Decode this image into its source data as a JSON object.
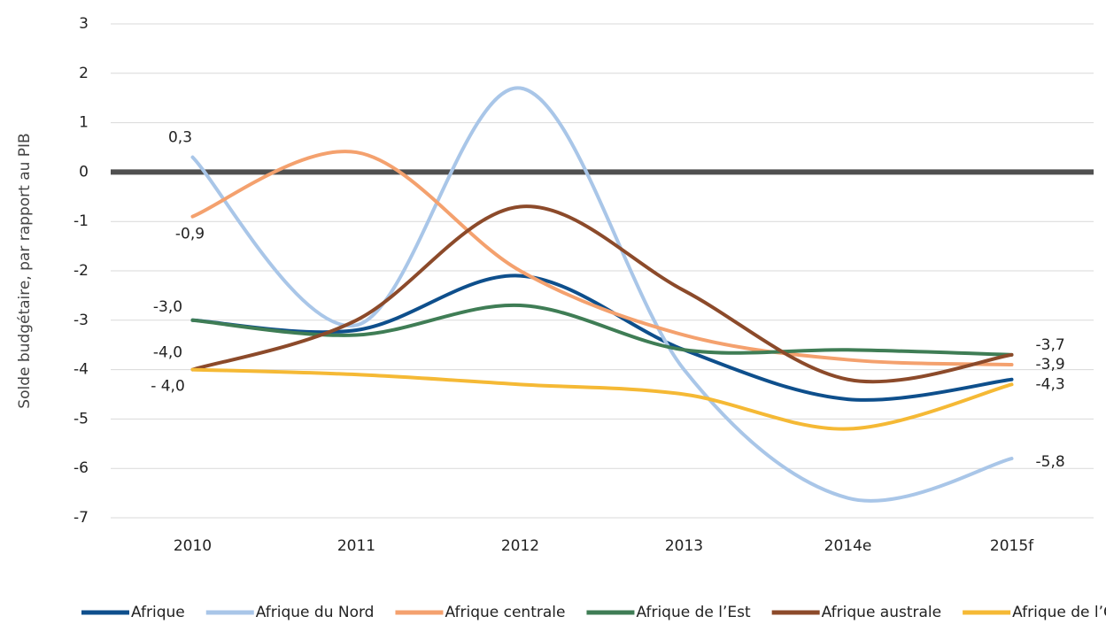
{
  "chart_data": {
    "type": "line",
    "y_label": "Solde budgétaire, par rapport au PIB",
    "categories": [
      "2010",
      "2011",
      "2012",
      "2013",
      "2014e",
      "2015f"
    ],
    "series": [
      {
        "name": "Afrique",
        "color": "#0e4f8c",
        "values": [
          -3.0,
          -3.2,
          -2.1,
          -3.6,
          -4.6,
          -4.2
        ],
        "value_labels": [
          "-3,0",
          null,
          null,
          null,
          null,
          null
        ]
      },
      {
        "name": "Afrique du Nord",
        "color": "#a9c6e8",
        "values": [
          0.3,
          -3.1,
          1.7,
          -4.0,
          -6.6,
          -5.8
        ],
        "value_labels": [
          "0,3",
          null,
          null,
          null,
          null,
          "-5,8"
        ]
      },
      {
        "name": "Afrique centrale",
        "color": "#f4a16e",
        "values": [
          -0.9,
          0.4,
          -2.0,
          -3.3,
          -3.8,
          -3.9
        ],
        "value_labels": [
          "-0,9",
          null,
          null,
          null,
          null,
          "-3,9"
        ]
      },
      {
        "name": "Afrique de l’Est",
        "color": "#3f7d55",
        "values": [
          -3.0,
          -3.3,
          -2.7,
          -3.6,
          -3.6,
          -3.7
        ],
        "value_labels": [
          null,
          null,
          null,
          null,
          null,
          "-3,7"
        ]
      },
      {
        "name": "Afrique australe",
        "color": "#8c4a2a",
        "values": [
          -4.0,
          -3.0,
          -0.7,
          -2.4,
          -4.2,
          -3.7
        ],
        "value_labels": [
          "-4,0",
          null,
          null,
          null,
          null,
          null
        ]
      },
      {
        "name": "Afrique de l’Ouest",
        "color": "#f5b935",
        "values": [
          -4.0,
          -4.1,
          -4.3,
          -4.5,
          -5.2,
          -4.3
        ],
        "value_labels": [
          "- 4,0",
          null,
          null,
          null,
          null,
          "-4,3"
        ]
      }
    ],
    "ylim": [
      -7,
      3
    ],
    "yticks": [
      -7,
      -6,
      -5,
      -4,
      -3,
      -2,
      -1,
      0,
      1,
      2,
      3
    ],
    "grid": true,
    "legend": "bottom"
  }
}
